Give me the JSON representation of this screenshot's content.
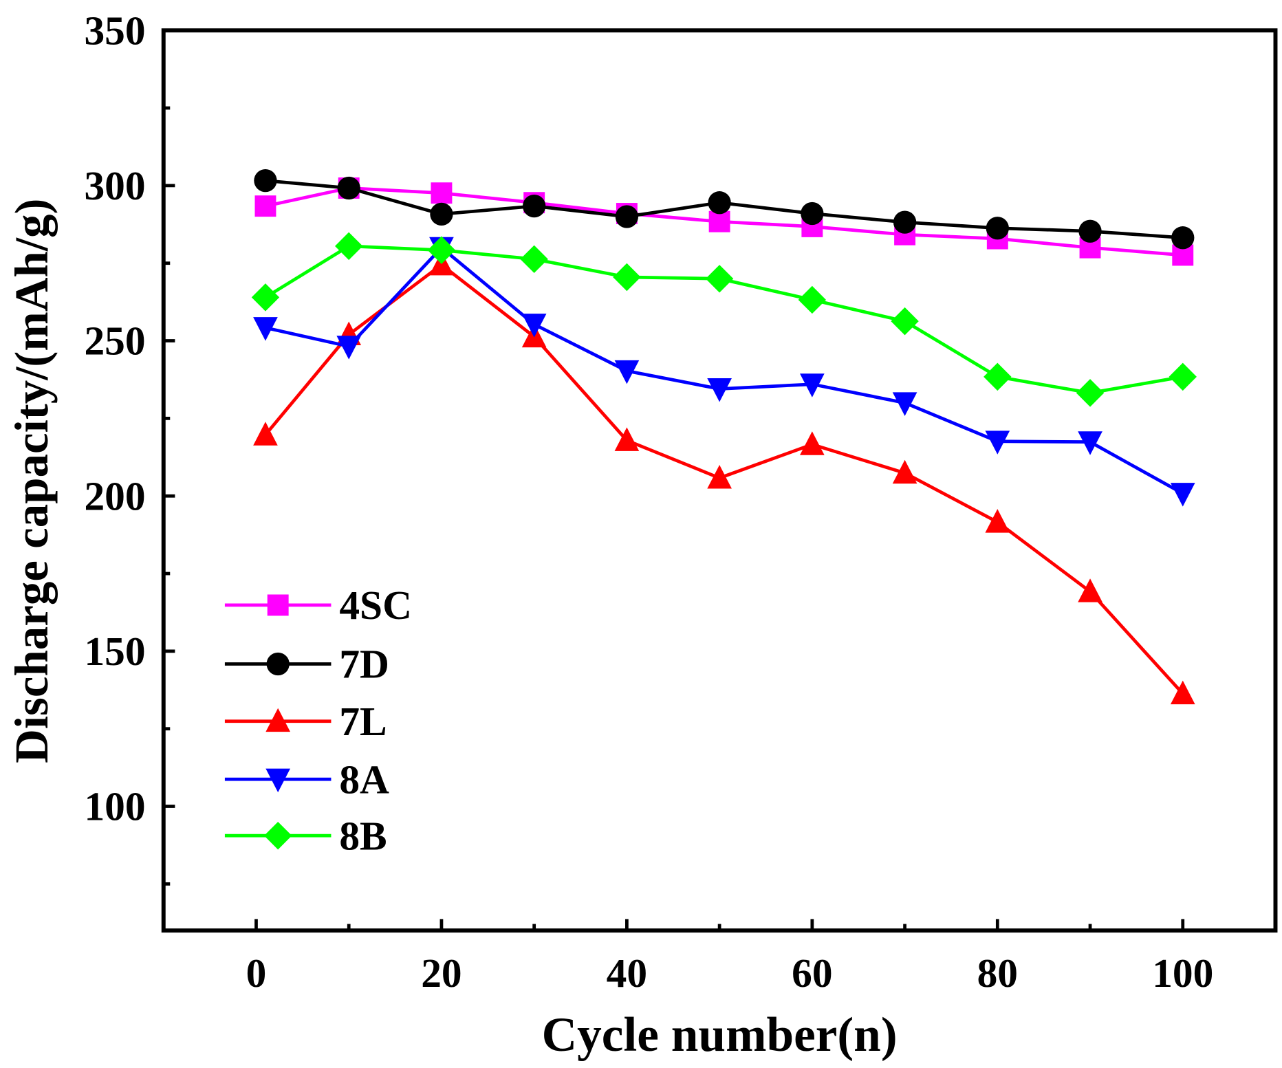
{
  "chart_data": {
    "type": "line",
    "title": "",
    "xlabel": "Cycle number(n)",
    "ylabel": "Discharge capacity/(mAh/g)",
    "xlim": [
      -10,
      110
    ],
    "ylim": [
      60,
      350
    ],
    "xticks": [
      0,
      20,
      40,
      60,
      80,
      100
    ],
    "yticks": [
      100,
      150,
      200,
      250,
      300,
      350
    ],
    "grid": false,
    "legend_position": "lower-left",
    "x": [
      1,
      10,
      20,
      30,
      40,
      50,
      60,
      70,
      80,
      90,
      100
    ],
    "series": [
      {
        "name": "4SC",
        "color": "#ff00ff",
        "marker": "square",
        "values": [
          293.4,
          299.2,
          297.6,
          294.5,
          291.0,
          288.4,
          286.8,
          284.2,
          282.9,
          280.0,
          277.6
        ]
      },
      {
        "name": "7D",
        "color": "#000000",
        "marker": "circle",
        "values": [
          301.6,
          299.2,
          290.8,
          293.4,
          290.0,
          294.5,
          291.0,
          288.2,
          286.3,
          285.3,
          283.2
        ]
      },
      {
        "name": "7L",
        "color": "#ff0000",
        "marker": "triangle-up",
        "values": [
          219.7,
          252.0,
          274.5,
          251.3,
          217.9,
          205.8,
          216.6,
          207.4,
          191.6,
          169.2,
          136.3
        ]
      },
      {
        "name": "8A",
        "color": "#0000ff",
        "marker": "triangle-down",
        "values": [
          254.2,
          248.2,
          280.0,
          255.3,
          240.3,
          234.5,
          236.0,
          230.0,
          217.6,
          217.4,
          200.8
        ]
      },
      {
        "name": "8B",
        "color": "#00ff00",
        "marker": "diamond",
        "values": [
          264.0,
          280.5,
          279.2,
          276.3,
          270.5,
          270.0,
          263.2,
          256.3,
          238.4,
          233.2,
          238.4
        ]
      }
    ]
  }
}
